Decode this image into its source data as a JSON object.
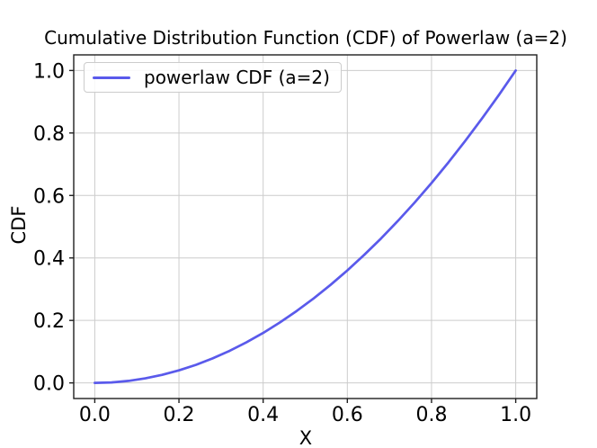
{
  "chart_data": {
    "type": "line",
    "title": "Cumulative Distribution Function (CDF) of Powerlaw (a=2)",
    "xlabel": "X",
    "ylabel": "CDF",
    "xlim": [
      -0.05,
      1.05
    ],
    "ylim": [
      -0.05,
      1.05
    ],
    "grid": true,
    "xtick_values": [
      0.0,
      0.2,
      0.4,
      0.6,
      0.8,
      1.0
    ],
    "xtick_labels": [
      "0.0",
      "0.2",
      "0.4",
      "0.6",
      "0.8",
      "1.0"
    ],
    "ytick_values": [
      0.0,
      0.2,
      0.4,
      0.6,
      0.8,
      1.0
    ],
    "ytick_labels": [
      "0.0",
      "0.2",
      "0.4",
      "0.6",
      "0.8",
      "1.0"
    ],
    "legend": {
      "location": "upper left",
      "entries": [
        "powerlaw CDF (a=2)"
      ]
    },
    "series": [
      {
        "name": "powerlaw CDF (a=2)",
        "color": "#5a5aeb",
        "x": [
          0,
          0.04,
          0.08,
          0.12,
          0.16,
          0.2,
          0.24,
          0.28,
          0.32,
          0.36,
          0.4,
          0.44,
          0.48,
          0.52,
          0.56,
          0.6,
          0.64,
          0.68,
          0.72,
          0.76,
          0.8,
          0.84,
          0.88,
          0.92,
          0.96,
          1.0
        ],
        "y": [
          0,
          0.0016,
          0.0064,
          0.0144,
          0.0256,
          0.04,
          0.0576,
          0.0784,
          0.1024,
          0.1296,
          0.16,
          0.1936,
          0.2304,
          0.2704,
          0.3136,
          0.36,
          0.4096,
          0.4624,
          0.5184,
          0.5776,
          0.64,
          0.7056,
          0.7744,
          0.8464,
          0.9216,
          1.0
        ]
      }
    ]
  },
  "colors": {
    "line": "#5a5aeb",
    "grid": "#cccccc",
    "spine": "#1f1f1f",
    "text": "#000000",
    "legend_border": "#cccccc",
    "background": "#ffffff"
  }
}
